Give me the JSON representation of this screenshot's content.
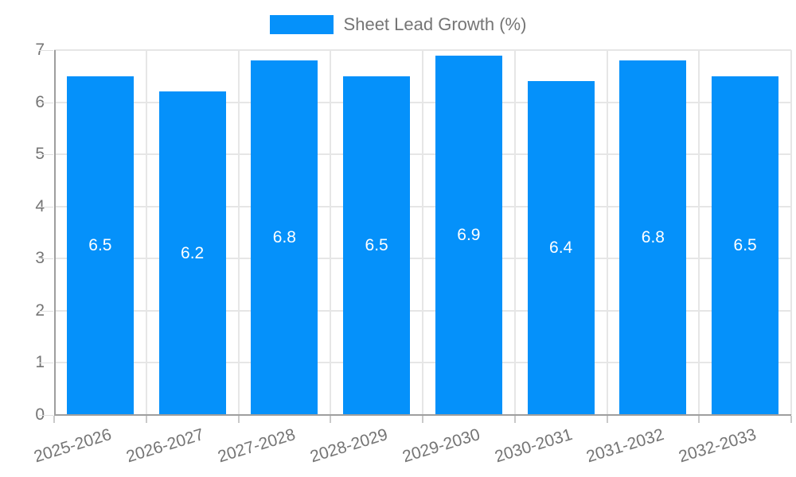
{
  "chart_data": {
    "type": "bar",
    "title": "",
    "legend": {
      "position": "top",
      "label": "Sheet Lead Growth (%)"
    },
    "categories": [
      "2025-2026",
      "2026-2027",
      "2027-2028",
      "2028-2029",
      "2029-2030",
      "2030-2031",
      "2031-2032",
      "2032-2033"
    ],
    "series": [
      {
        "name": "Sheet Lead Growth (%)",
        "values": [
          6.5,
          6.2,
          6.8,
          6.5,
          6.9,
          6.4,
          6.8,
          6.5
        ]
      }
    ],
    "value_labels": [
      "6.5",
      "6.2",
      "6.8",
      "6.5",
      "6.9",
      "6.4",
      "6.8",
      "6.5"
    ],
    "xlabel": "",
    "ylabel": "",
    "ylim": [
      0,
      7
    ],
    "ytick_step": 1,
    "yticks": [
      "0",
      "1",
      "2",
      "3",
      "4",
      "5",
      "6",
      "7"
    ],
    "grid": true,
    "colors": {
      "bar": "#0591fa",
      "bar_value_text": "#ffffff",
      "axis_text": "#757575",
      "gridline": "#e6e6e6",
      "axis_line": "#9e9e9e",
      "tick": "#c9c9c9",
      "background": "#ffffff"
    }
  }
}
